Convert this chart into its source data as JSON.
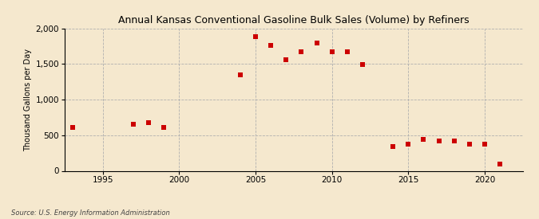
{
  "title": "Annual Kansas Conventional Gasoline Bulk Sales (Volume) by Refiners",
  "ylabel": "Thousand Gallons per Day",
  "source": "Source: U.S. Energy Information Administration",
  "background_color": "#f5e8ce",
  "marker_color": "#cc0000",
  "years": [
    1993,
    1997,
    1998,
    1999,
    2004,
    2005,
    2006,
    2007,
    2008,
    2009,
    2010,
    2011,
    2012,
    2014,
    2015,
    2016,
    2017,
    2018,
    2019,
    2020,
    2021
  ],
  "values": [
    610,
    660,
    680,
    610,
    1350,
    1890,
    1760,
    1565,
    1670,
    1800,
    1670,
    1670,
    1490,
    340,
    370,
    440,
    415,
    415,
    370,
    370,
    95
  ],
  "ylim": [
    0,
    2000
  ],
  "yticks": [
    0,
    500,
    1000,
    1500,
    2000
  ],
  "xlim": [
    1992.5,
    2022.5
  ],
  "xticks": [
    1995,
    2000,
    2005,
    2010,
    2015,
    2020
  ],
  "title_fontsize": 9,
  "ylabel_fontsize": 7,
  "tick_fontsize": 7.5,
  "source_fontsize": 6,
  "marker_size": 18
}
